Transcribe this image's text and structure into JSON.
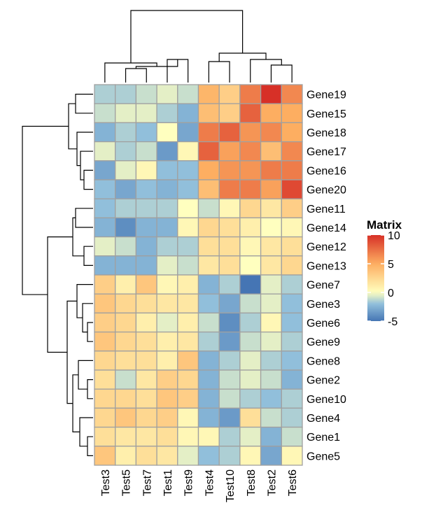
{
  "chart_data": {
    "type": "heatmap",
    "title": "",
    "columns": [
      "Test3",
      "Test5",
      "Test7",
      "Test1",
      "Test9",
      "Test4",
      "Test10",
      "Test8",
      "Test2",
      "Test6"
    ],
    "rows": [
      "Gene19",
      "Gene15",
      "Gene18",
      "Gene17",
      "Gene16",
      "Gene20",
      "Gene11",
      "Gene14",
      "Gene12",
      "Gene13",
      "Gene7",
      "Gene3",
      "Gene6",
      "Gene9",
      "Gene8",
      "Gene2",
      "Gene10",
      "Gene4",
      "Gene1",
      "Gene5"
    ],
    "values": [
      [
        -1.5,
        -1.5,
        -1.0,
        -0.5,
        -1.0,
        4.5,
        3.0,
        7.0,
        10.0,
        6.5
      ],
      [
        -1.0,
        -0.5,
        -0.5,
        -1.5,
        -2.5,
        4.0,
        3.0,
        8.0,
        5.0,
        5.0
      ],
      [
        -2.5,
        -1.5,
        -2.0,
        0.0,
        -3.0,
        7.0,
        8.0,
        6.0,
        6.5,
        5.0
      ],
      [
        -0.5,
        -1.5,
        -1.0,
        -3.5,
        0.5,
        8.0,
        5.5,
        6.5,
        4.0,
        6.5
      ],
      [
        -3.0,
        -0.5,
        0.5,
        -2.0,
        -2.0,
        5.0,
        6.0,
        6.0,
        7.0,
        7.0
      ],
      [
        -2.0,
        -3.0,
        -2.0,
        -2.5,
        -2.0,
        4.0,
        7.0,
        7.0,
        5.5,
        9.0
      ],
      [
        -2.0,
        -1.5,
        -1.5,
        -1.5,
        0.0,
        -1.0,
        0.5,
        2.5,
        1.5,
        3.0
      ],
      [
        -2.5,
        -4.0,
        -2.5,
        -2.5,
        0.5,
        2.5,
        2.0,
        1.0,
        0.0,
        0.5
      ],
      [
        -0.5,
        -1.0,
        -2.5,
        -1.5,
        -1.5,
        2.0,
        2.0,
        0.5,
        1.5,
        2.0
      ],
      [
        -2.5,
        -2.5,
        -2.5,
        -0.5,
        -1.0,
        1.5,
        2.0,
        0.0,
        1.5,
        2.5
      ],
      [
        3.0,
        1.0,
        3.5,
        0.5,
        1.0,
        -2.5,
        -1.5,
        -5.0,
        -0.5,
        -1.5
      ],
      [
        3.5,
        2.5,
        2.0,
        1.5,
        1.5,
        -2.0,
        -3.0,
        -1.0,
        -0.5,
        -2.0
      ],
      [
        3.0,
        2.5,
        1.0,
        -0.5,
        1.0,
        -1.0,
        -4.0,
        -1.5,
        0.5,
        -2.0
      ],
      [
        3.5,
        2.5,
        2.0,
        1.0,
        1.5,
        -1.5,
        -3.5,
        -1.0,
        -0.5,
        -1.5
      ],
      [
        2.5,
        2.0,
        2.0,
        1.0,
        3.5,
        -2.5,
        -1.5,
        -0.5,
        -1.5,
        -2.0
      ],
      [
        2.0,
        -1.0,
        1.5,
        3.0,
        2.5,
        -2.5,
        -1.0,
        -0.5,
        -1.0,
        -2.5
      ],
      [
        2.5,
        2.5,
        2.0,
        3.5,
        3.0,
        -2.5,
        -1.0,
        -1.5,
        -2.0,
        -1.5
      ],
      [
        2.5,
        3.5,
        2.5,
        3.0,
        0.5,
        -2.5,
        -3.5,
        2.0,
        -1.0,
        -1.5
      ],
      [
        2.0,
        1.5,
        1.5,
        2.0,
        0.5,
        0.5,
        -1.5,
        -0.5,
        -2.5,
        -1.0
      ],
      [
        3.5,
        1.0,
        2.0,
        1.5,
        -0.5,
        -2.0,
        -1.5,
        0.5,
        -3.0,
        0.5
      ]
    ],
    "legend": {
      "title": "Matrix",
      "ticks": [
        10,
        5,
        0,
        -5
      ],
      "range": [
        -5,
        10
      ],
      "placement": "right"
    },
    "row_dendrogram": "left",
    "column_dendrogram": "top",
    "colors": {
      "low": "#4575B4",
      "mid_low": "#91BFDB",
      "mid": "#FFFFBF",
      "mid_high": "#FDAE61",
      "high": "#D73027",
      "cell_border": "#A0A0A0",
      "tree": "#000000"
    }
  }
}
